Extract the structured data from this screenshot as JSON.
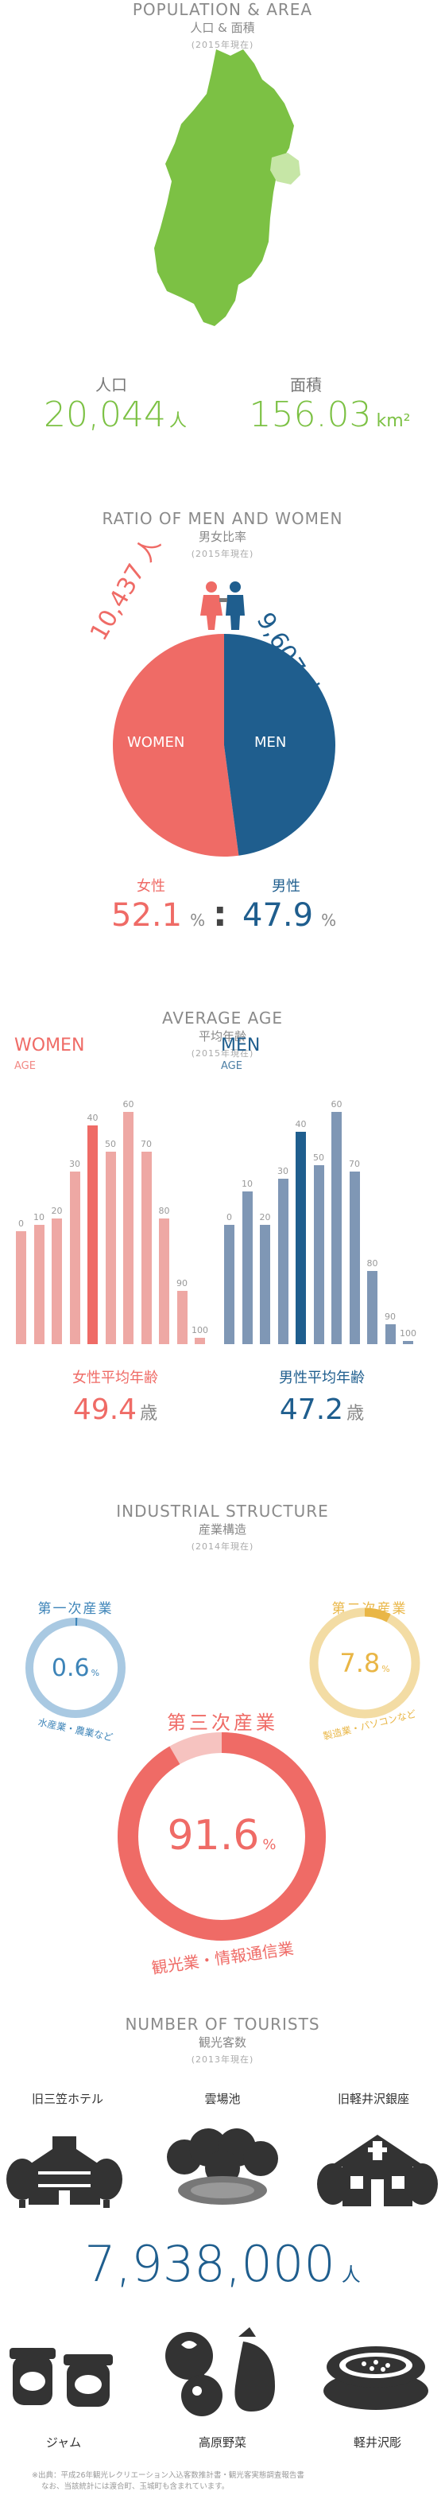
{
  "population_area": {
    "title": "POPULATION & AREA",
    "subtitle": "人口 & 面積",
    "year": "(2015年現在)",
    "population_label": "人口",
    "population_value": "20,044",
    "population_unit": "人",
    "area_label": "面積",
    "area_value": "156.03",
    "area_unit": "km²"
  },
  "gender": {
    "title": "RATIO OF MEN AND WOMEN",
    "subtitle": "男女比率",
    "year": "(2015年現在)",
    "women_count": "10,437 人",
    "men_count": "9,607 人",
    "women_pie_label": "WOMEN",
    "men_pie_label": "MEN",
    "women_label": "女性",
    "men_label": "男性",
    "women_pct": "52.1",
    "men_pct": "47.9",
    "pct_unit": "%",
    "separator": ":",
    "women_fraction": 0.521,
    "colors": {
      "women": "#ef6b66",
      "men": "#1f5e8e"
    }
  },
  "age": {
    "title": "AVERAGE AGE",
    "subtitle": "平均年齢",
    "year": "(2015年現在)",
    "women_title": "WOMEN",
    "women_age_label": "AGE",
    "men_title": "MEN",
    "men_age_label": "AGE",
    "women_avg_label": "女性平均年齢",
    "women_avg_value": "49.4",
    "men_avg_label": "男性平均年齢",
    "men_avg_value": "47.2",
    "avg_unit": "歳"
  },
  "industry": {
    "title": "INDUSTRIAL STRUCTURE",
    "subtitle": "産業構造",
    "year": "(2014年現在)",
    "primary_title": "第一次産業",
    "primary_value": "0.6",
    "primary_desc": "水産業・農業など",
    "secondary_title": "第二次産業",
    "secondary_value": "7.8",
    "secondary_desc": "製造業・パソコンなど",
    "tertiary_title": "第三次産業",
    "tertiary_value": "91.6",
    "tertiary_desc": "観光業・情報通信業",
    "pct_unit": "%",
    "primary_fraction": 0.006,
    "secondary_fraction": 0.078,
    "tertiary_fraction": 0.916,
    "colors": {
      "primary": "#3d84b8",
      "secondary": "#e9b646",
      "tertiary": "#ef6b66"
    }
  },
  "tourists": {
    "title": "NUMBER OF TOURISTS",
    "subtitle": "観光客数",
    "year": "(2013年現在)",
    "spot1": "旧三笠ホテル",
    "spot2": "雲場池",
    "spot3": "旧軽井沢銀座",
    "count": "7,938,000",
    "count_unit": "人",
    "item1": "ジャム",
    "item2": "高原野菜",
    "item3": "軽井沢彫",
    "note_line1": "※出典：平成26年観光レクリエーション入込客数推計書・観光客実態調査報告書",
    "note_line2": "なお、当該統計には渡合町、玉城町も含まれています。"
  },
  "chart_data": [
    {
      "type": "bar",
      "title": "WOMEN",
      "xlabel": "AGE",
      "categories": [
        "0",
        "10",
        "20",
        "30",
        "40",
        "50",
        "60",
        "70",
        "80",
        "90",
        "100"
      ],
      "values": [
        1.7,
        1.8,
        1.9,
        2.6,
        3.3,
        2.9,
        3.5,
        2.9,
        1.9,
        0.8,
        0.1
      ],
      "highlight_index": 4,
      "colors": {
        "bar": "#eea8a4",
        "highlight": "#ef6b66"
      }
    },
    {
      "type": "bar",
      "title": "MEN",
      "xlabel": "AGE",
      "categories": [
        "0",
        "10",
        "20",
        "30",
        "40",
        "50",
        "60",
        "70",
        "80",
        "90",
        "100"
      ],
      "values": [
        1.8,
        2.3,
        1.8,
        2.5,
        3.2,
        2.7,
        3.5,
        2.6,
        1.1,
        0.3,
        0.05
      ],
      "highlight_index": 4,
      "colors": {
        "bar": "#7f97b5",
        "highlight": "#1f5e8e"
      }
    }
  ]
}
